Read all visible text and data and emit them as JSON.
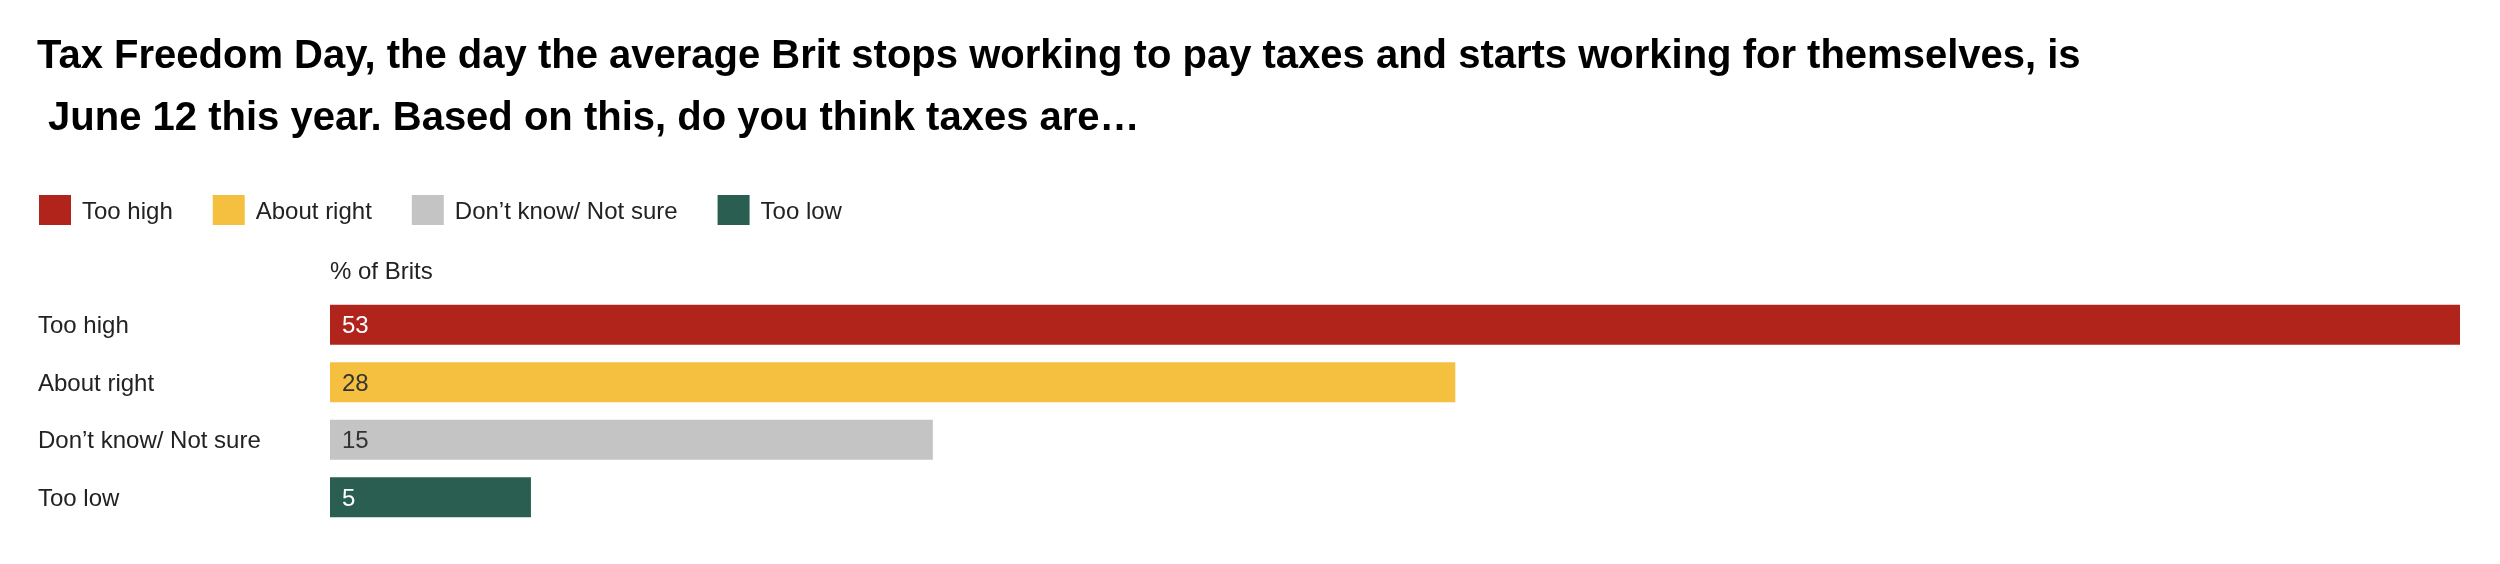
{
  "chart_data": {
    "type": "bar",
    "orientation": "horizontal",
    "stacked": true,
    "title": "Tax Freedom Day, the day the average Brit stops working to pay taxes and starts working for themselves, is June 12 this year. Based on this, do you think taxes are…",
    "xlabel": "% of Brits",
    "categories": [
      "Too high",
      "About right",
      "Don’t know/ Not sure",
      "Too low"
    ],
    "series": [
      {
        "name": "Too high",
        "color": "#b0241b",
        "values": [
          53,
          null,
          null,
          null
        ]
      },
      {
        "name": "About right",
        "color": "#f5c040",
        "values": [
          null,
          28,
          null,
          null
        ]
      },
      {
        "name": "Don’t know/ Not sure",
        "color": "#c4c4c4",
        "values": [
          null,
          null,
          15,
          null
        ]
      },
      {
        "name": "Too low",
        "color": "#2a5e50",
        "values": [
          null,
          null,
          null,
          5
        ]
      }
    ],
    "data_labels": true,
    "legend": "top left"
  }
}
